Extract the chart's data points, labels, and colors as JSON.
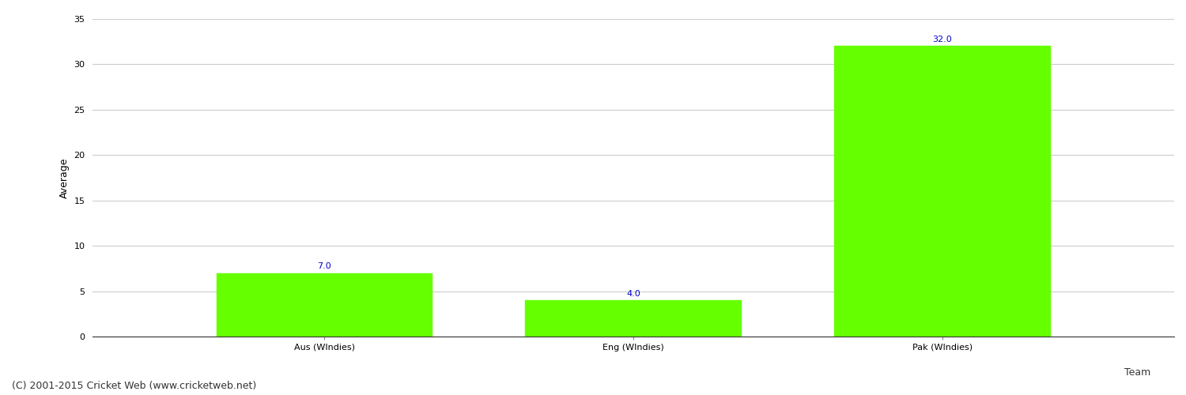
{
  "categories": [
    "Aus (WIndies)",
    "Eng (WIndies)",
    "Pak (WIndies)"
  ],
  "values": [
    7.0,
    4.0,
    32.0
  ],
  "bar_color": "#66ff00",
  "bar_edge_color": "#66ff00",
  "value_label_color": "#0000cc",
  "value_label_fontsize": 8,
  "xlabel": "Team",
  "ylabel": "Average",
  "ylim": [
    0,
    35
  ],
  "yticks": [
    0,
    5,
    10,
    15,
    20,
    25,
    30,
    35
  ],
  "grid_color": "#cccccc",
  "background_color": "#ffffff",
  "footnote": "(C) 2001-2015 Cricket Web (www.cricketweb.net)",
  "footnote_fontsize": 9,
  "footnote_color": "#333333",
  "xlabel_fontsize": 9,
  "ylabel_fontsize": 9,
  "tick_label_fontsize": 8,
  "bar_width": 0.7
}
